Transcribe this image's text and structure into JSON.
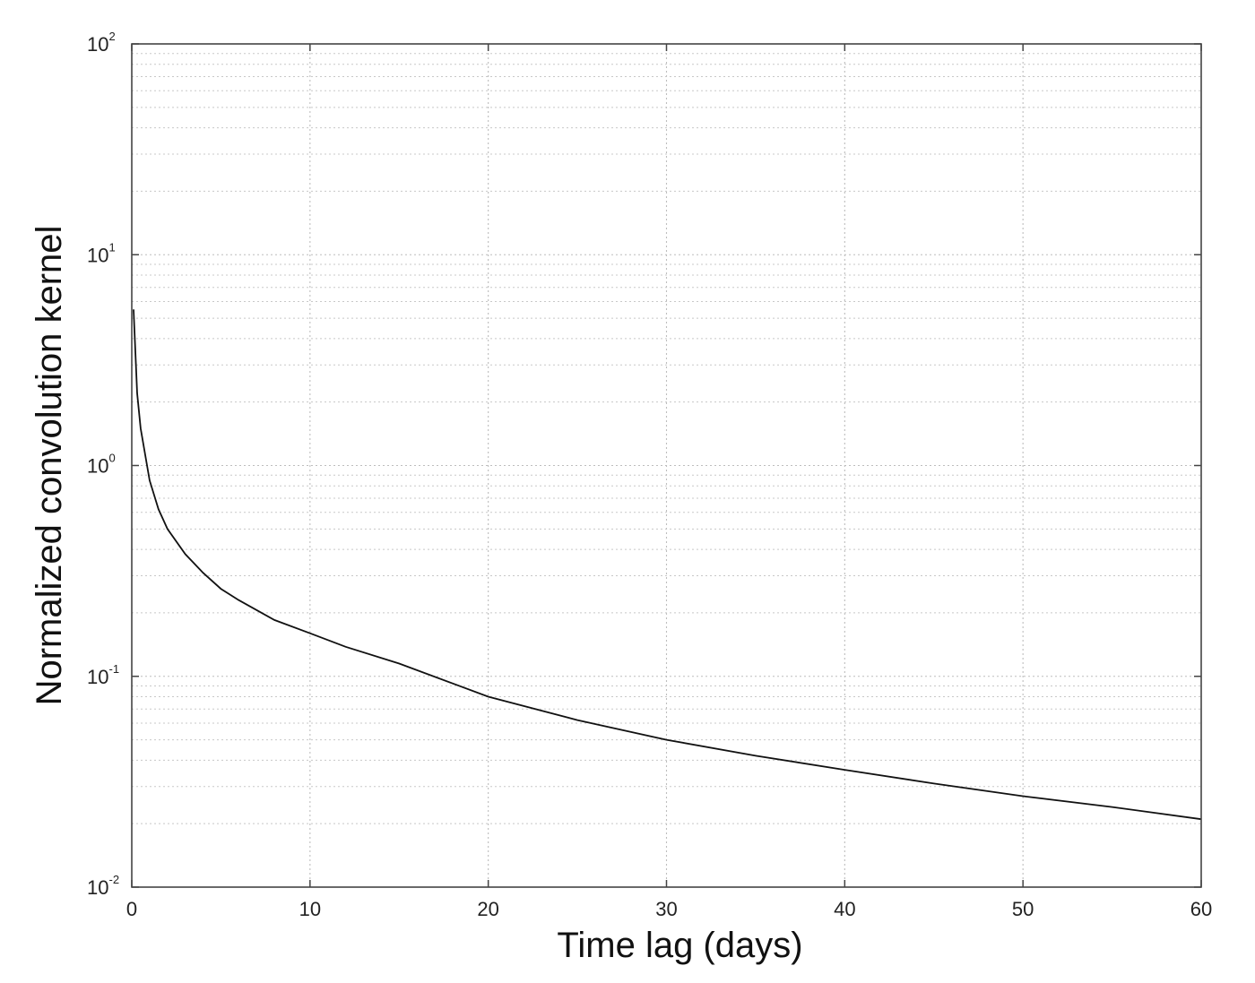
{
  "chart_data": {
    "type": "line",
    "title": "",
    "xlabel": "Time lag (days)",
    "ylabel": "Normalized convolution kernel",
    "xlim": [
      0,
      60
    ],
    "ylim": [
      0.01,
      100
    ],
    "yscale": "log",
    "grid": true,
    "x_ticks": [
      {
        "value": 0,
        "label": "0"
      },
      {
        "value": 10,
        "label": "10"
      },
      {
        "value": 20,
        "label": "20"
      },
      {
        "value": 30,
        "label": "30"
      },
      {
        "value": 40,
        "label": "40"
      },
      {
        "value": 50,
        "label": "50"
      },
      {
        "value": 60,
        "label": "60"
      }
    ],
    "y_ticks": [
      {
        "value": 0.01,
        "base": "10",
        "exponent": "-2"
      },
      {
        "value": 0.1,
        "base": "10",
        "exponent": "-1"
      },
      {
        "value": 1,
        "base": "10",
        "exponent": "0"
      },
      {
        "value": 10,
        "base": "10",
        "exponent": "1"
      },
      {
        "value": 100,
        "base": "10",
        "exponent": "2"
      }
    ],
    "series": [
      {
        "color": "#111111",
        "x": [
          0.1,
          0.3,
          0.5,
          1,
          1.5,
          2,
          3,
          4,
          5,
          6,
          8,
          10,
          12,
          15,
          20,
          25,
          30,
          35,
          40,
          45,
          50,
          55,
          60
        ],
        "y": [
          5.5,
          2.2,
          1.5,
          0.85,
          0.62,
          0.5,
          0.38,
          0.31,
          0.26,
          0.23,
          0.185,
          0.16,
          0.138,
          0.115,
          0.08,
          0.062,
          0.05,
          0.042,
          0.036,
          0.031,
          0.027,
          0.024,
          0.021
        ]
      }
    ]
  }
}
